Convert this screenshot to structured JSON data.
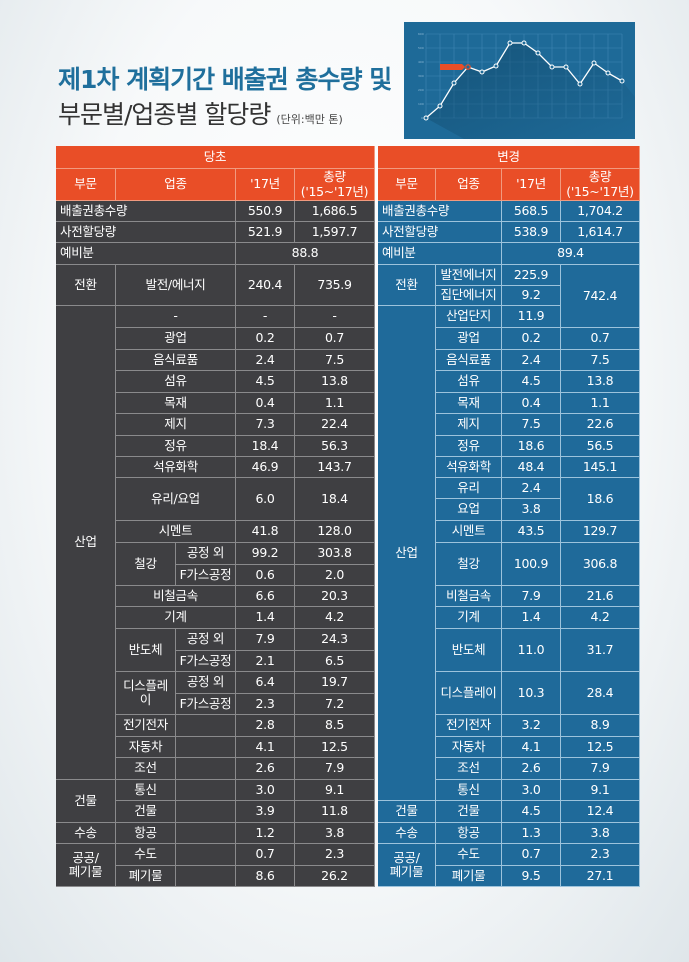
{
  "title": {
    "line1": "제1차 계획기간 배출권 총수량 및",
    "line2": "부문별/업종별 할당량",
    "unit": "(단위:백만 톤)"
  },
  "chart_image": {
    "label": "decorative line chart",
    "tag_label": "56.8.8%",
    "y_ticks": [
      "600",
      "500",
      "400",
      "300",
      "200",
      "100",
      "0"
    ],
    "x_ticks": [
      "0",
      "10",
      "20",
      "30",
      "40",
      "50",
      "60",
      "70",
      "80",
      "90",
      "100",
      "110",
      "120",
      "130",
      "140"
    ]
  },
  "colors": {
    "header": "#e94e27",
    "original": "#3f3f42",
    "changed": "#1f6a9a",
    "title_blue": "#1f6f9c"
  },
  "table": {
    "original_heading": "당초",
    "changed_heading": "변경",
    "col_headers": {
      "sector": "부문",
      "industry": "업종",
      "y17": "'17년",
      "total": "총량\n('15~'17년)"
    },
    "original": {
      "total_cap": {
        "label": "배출권총수량",
        "y17": "550.9",
        "total": "1,686.5"
      },
      "pre_alloc": {
        "label": "사전할당량",
        "y17": "521.9",
        "total": "1,597.7"
      },
      "reserve": {
        "label": "예비분",
        "value": "88.8"
      },
      "rows": [
        {
          "sector": "전환",
          "industry": "발전/에너지",
          "y17": "240.4",
          "total": "735.9"
        },
        {
          "sector": "산업",
          "industry": "-",
          "y17": "-",
          "total": "-"
        },
        {
          "industry": "광업",
          "y17": "0.2",
          "total": "0.7"
        },
        {
          "industry": "음식료품",
          "y17": "2.4",
          "total": "7.5"
        },
        {
          "industry": "섬유",
          "y17": "4.5",
          "total": "13.8"
        },
        {
          "industry": "목재",
          "y17": "0.4",
          "total": "1.1"
        },
        {
          "industry": "제지",
          "y17": "7.3",
          "total": "22.4"
        },
        {
          "industry": "정유",
          "y17": "18.4",
          "total": "56.3"
        },
        {
          "industry": "석유화학",
          "y17": "46.9",
          "total": "143.7"
        },
        {
          "industry": "유리/요업",
          "y17": "6.0",
          "total": "18.4"
        },
        {
          "industry": "시멘트",
          "y17": "41.8",
          "total": "128.0"
        },
        {
          "industry": "철강",
          "sub": "공정 외",
          "y17": "99.2",
          "total": "303.8"
        },
        {
          "industry": "철강",
          "sub": "F가스공정",
          "y17": "0.6",
          "total": "2.0"
        },
        {
          "industry": "비철금속",
          "y17": "6.6",
          "total": "20.3"
        },
        {
          "industry": "기계",
          "y17": "1.4",
          "total": "4.2"
        },
        {
          "industry": "반도체",
          "sub": "공정 외",
          "y17": "7.9",
          "total": "24.3"
        },
        {
          "industry": "반도체",
          "sub": "F가스공정",
          "y17": "2.1",
          "total": "6.5"
        },
        {
          "industry": "디스플레\n이",
          "sub": "공정 외",
          "y17": "6.4",
          "total": "19.7"
        },
        {
          "industry": "디스플레\n이",
          "sub": "F가스공정",
          "y17": "2.3",
          "total": "7.2"
        },
        {
          "industry": "전기전자",
          "y17": "2.8",
          "total": "8.5"
        },
        {
          "industry": "자동차",
          "y17": "4.1",
          "total": "12.5"
        },
        {
          "industry": "조선",
          "y17": "2.6",
          "total": "7.9"
        },
        {
          "sector": "건물",
          "industry": "통신",
          "y17": "3.0",
          "total": "9.1"
        },
        {
          "industry": "건물",
          "y17": "3.9",
          "total": "11.8"
        },
        {
          "sector": "수송",
          "industry": "항공",
          "y17": "1.2",
          "total": "3.8"
        },
        {
          "sector": "공공/\n폐기물",
          "industry": "수도",
          "y17": "0.7",
          "total": "2.3"
        },
        {
          "industry": "폐기물",
          "y17": "8.6",
          "total": "26.2"
        }
      ]
    },
    "changed": {
      "total_cap": {
        "label": "배출권총수량",
        "y17": "568.5",
        "total": "1,704.2"
      },
      "pre_alloc": {
        "label": "사전할당량",
        "y17": "538.9",
        "total": "1,614.7"
      },
      "reserve": {
        "label": "예비분",
        "value": "89.4"
      },
      "rows": [
        {
          "sector": "전환",
          "industry": "발전에너지",
          "y17": "225.9",
          "total": "742.4"
        },
        {
          "industry": "집단에너지",
          "y17": "9.2"
        },
        {
          "sector": "산업",
          "industry": "산업단지",
          "y17": "11.9"
        },
        {
          "industry": "광업",
          "y17": "0.2",
          "total": "0.7"
        },
        {
          "industry": "음식료품",
          "y17": "2.4",
          "total": "7.5"
        },
        {
          "industry": "섬유",
          "y17": "4.5",
          "total": "13.8"
        },
        {
          "industry": "목재",
          "y17": "0.4",
          "total": "1.1"
        },
        {
          "industry": "제지",
          "y17": "7.5",
          "total": "22.6"
        },
        {
          "industry": "정유",
          "y17": "18.6",
          "total": "56.5"
        },
        {
          "industry": "석유화학",
          "y17": "48.4",
          "total": "145.1"
        },
        {
          "industry": "유리",
          "y17": "2.4",
          "total": "18.6"
        },
        {
          "industry": "요업",
          "y17": "3.8"
        },
        {
          "industry": "시멘트",
          "y17": "43.5",
          "total": "129.7"
        },
        {
          "industry": "철강",
          "y17": "100.9",
          "total": "306.8"
        },
        {
          "industry": "비철금속",
          "y17": "7.9",
          "total": "21.6"
        },
        {
          "industry": "기계",
          "y17": "1.4",
          "total": "4.2"
        },
        {
          "industry": "반도체",
          "y17": "11.0",
          "total": "31.7"
        },
        {
          "industry": "디스플레이",
          "y17": "10.3",
          "total": "28.4"
        },
        {
          "industry": "전기전자",
          "y17": "3.2",
          "total": "8.9"
        },
        {
          "industry": "자동차",
          "y17": "4.1",
          "total": "12.5"
        },
        {
          "industry": "조선",
          "y17": "2.6",
          "total": "7.9"
        },
        {
          "industry": "통신",
          "y17": "3.0",
          "total": "9.1"
        },
        {
          "sector": "건물",
          "industry": "건물",
          "y17": "4.5",
          "total": "12.4"
        },
        {
          "sector": "수송",
          "industry": "항공",
          "y17": "1.3",
          "total": "3.8"
        },
        {
          "sector": "공공/\n폐기물",
          "industry": "수도",
          "y17": "0.7",
          "total": "2.3"
        },
        {
          "industry": "폐기물",
          "y17": "9.5",
          "total": "27.1"
        }
      ]
    }
  }
}
